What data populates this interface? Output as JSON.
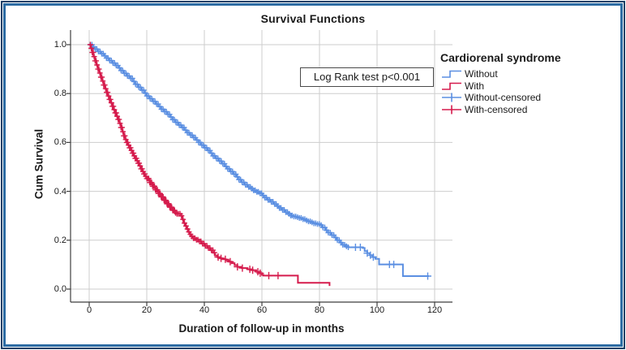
{
  "chart": {
    "title": "Survival Functions",
    "x_label": "Duration of follow-up in months",
    "y_label": "Cum Survival",
    "annotation": "Log Rank test p<0.001",
    "legend": {
      "title": "Cardiorenal syndrome",
      "items": [
        {
          "label": "Without",
          "symbol": "step-line",
          "color": "#5b8fe2"
        },
        {
          "label": "With",
          "symbol": "step-line",
          "color": "#d51c4d"
        },
        {
          "label": "Without-censored",
          "symbol": "plus-line",
          "color": "#5b8fe2"
        },
        {
          "label": "With-censored",
          "symbol": "plus-line",
          "color": "#d51c4d"
        }
      ]
    },
    "frame_colors": {
      "outer_border": "#1c3f66",
      "inner_border": "#2e6da4"
    }
  },
  "chart_data": {
    "type": "line",
    "subtype": "kaplan-meier-step",
    "title": "Survival Functions",
    "xlabel": "Duration of follow-up in months",
    "ylabel": "Cum Survival",
    "xlim": [
      -6.5,
      126
    ],
    "ylim": [
      -0.053,
      1.06
    ],
    "x_ticks": [
      0,
      20,
      40,
      60,
      80,
      100,
      120
    ],
    "y_ticks": [
      "0.0",
      "0.2",
      "0.4",
      "0.6",
      "0.8",
      "1.0"
    ],
    "grid": true,
    "grid_color": "#cdcdcd",
    "axis_color": "#3f3f3f",
    "legend_position": "right",
    "annotation": "Log Rank test p<0.001",
    "series": [
      {
        "name": "Without",
        "color": "#5b8fe2",
        "points": [
          [
            0,
            1
          ],
          [
            1,
            0.991
          ],
          [
            2,
            0.982
          ],
          [
            3,
            0.972
          ],
          [
            4,
            0.963
          ],
          [
            5,
            0.954
          ],
          [
            6,
            0.945
          ],
          [
            7,
            0.935
          ],
          [
            8,
            0.925
          ],
          [
            9,
            0.915
          ],
          [
            10,
            0.905
          ],
          [
            11,
            0.894
          ],
          [
            12,
            0.883
          ],
          [
            13,
            0.872
          ],
          [
            14,
            0.862
          ],
          [
            15,
            0.85
          ],
          [
            16,
            0.838
          ],
          [
            17,
            0.826
          ],
          [
            18,
            0.814
          ],
          [
            19,
            0.802
          ],
          [
            20,
            0.79
          ],
          [
            21,
            0.779
          ],
          [
            22,
            0.768
          ],
          [
            23,
            0.757
          ],
          [
            24,
            0.747
          ],
          [
            25,
            0.736
          ],
          [
            26,
            0.726
          ],
          [
            27,
            0.715
          ],
          [
            28,
            0.704
          ],
          [
            29,
            0.693
          ],
          [
            30,
            0.682
          ],
          [
            31,
            0.671
          ],
          [
            32,
            0.661
          ],
          [
            33,
            0.65
          ],
          [
            34,
            0.64
          ],
          [
            35,
            0.63
          ],
          [
            36,
            0.62
          ],
          [
            37,
            0.61
          ],
          [
            38,
            0.6
          ],
          [
            39,
            0.589
          ],
          [
            40,
            0.578
          ],
          [
            41,
            0.567
          ],
          [
            42,
            0.556
          ],
          [
            43,
            0.545
          ],
          [
            44,
            0.535
          ],
          [
            45,
            0.524
          ],
          [
            46,
            0.513
          ],
          [
            47,
            0.502
          ],
          [
            48,
            0.492
          ],
          [
            49,
            0.481
          ],
          [
            50,
            0.47
          ],
          [
            51,
            0.459
          ],
          [
            52,
            0.448
          ],
          [
            53,
            0.437
          ],
          [
            54,
            0.427
          ],
          [
            55,
            0.418
          ],
          [
            56,
            0.411
          ],
          [
            57,
            0.404
          ],
          [
            58,
            0.398
          ],
          [
            59,
            0.392
          ],
          [
            60,
            0.383
          ],
          [
            61,
            0.374
          ],
          [
            62,
            0.365
          ],
          [
            63,
            0.357
          ],
          [
            64,
            0.348
          ],
          [
            65,
            0.34
          ],
          [
            66,
            0.332
          ],
          [
            67,
            0.324
          ],
          [
            68,
            0.315
          ],
          [
            69,
            0.308
          ],
          [
            70,
            0.301
          ],
          [
            71,
            0.297
          ],
          [
            72,
            0.294
          ],
          [
            73,
            0.291
          ],
          [
            74,
            0.286
          ],
          [
            75,
            0.281
          ],
          [
            76,
            0.277
          ],
          [
            77,
            0.273
          ],
          [
            78,
            0.269
          ],
          [
            79,
            0.266
          ],
          [
            80,
            0.262
          ],
          [
            81,
            0.252
          ],
          [
            82,
            0.241
          ],
          [
            83,
            0.231
          ],
          [
            84,
            0.221
          ],
          [
            85,
            0.211
          ],
          [
            86,
            0.2
          ],
          [
            87,
            0.19
          ],
          [
            88,
            0.181
          ],
          [
            89,
            0.175
          ],
          [
            90,
            0.171
          ],
          [
            95,
            0.168
          ],
          [
            95.7,
            0.155
          ],
          [
            96.6,
            0.147
          ],
          [
            97.5,
            0.139
          ],
          [
            98.4,
            0.131
          ],
          [
            99.4,
            0.124
          ],
          [
            100.7,
            0.101
          ],
          [
            108.8,
            0.101
          ],
          [
            109,
            0.053
          ],
          [
            118,
            0.053
          ]
        ],
        "censor_dense": [
          [
            0.4,
            70,
            125
          ],
          [
            70.5,
            90,
            32
          ]
        ],
        "censor_marks": [
          92.5,
          94.2,
          96.6,
          97.7,
          98.7,
          104.3,
          105.8,
          117.6
        ]
      },
      {
        "name": "With",
        "color": "#d51c4d",
        "points": [
          [
            0,
            1
          ],
          [
            0.5,
            0.985
          ],
          [
            1,
            0.968
          ],
          [
            1.5,
            0.951
          ],
          [
            2,
            0.934
          ],
          [
            2.5,
            0.917
          ],
          [
            3,
            0.9
          ],
          [
            3.5,
            0.884
          ],
          [
            4,
            0.867
          ],
          [
            4.5,
            0.851
          ],
          [
            5,
            0.835
          ],
          [
            5.5,
            0.82
          ],
          [
            6,
            0.805
          ],
          [
            6.5,
            0.79
          ],
          [
            7,
            0.776
          ],
          [
            7.5,
            0.762
          ],
          [
            8,
            0.748
          ],
          [
            8.5,
            0.734
          ],
          [
            9,
            0.721
          ],
          [
            9.5,
            0.707
          ],
          [
            10,
            0.694
          ],
          [
            10.5,
            0.678
          ],
          [
            11,
            0.661
          ],
          [
            11.5,
            0.644
          ],
          [
            12,
            0.627
          ],
          [
            12.5,
            0.612
          ],
          [
            13,
            0.6
          ],
          [
            13.5,
            0.589
          ],
          [
            14,
            0.578
          ],
          [
            14.5,
            0.567
          ],
          [
            15,
            0.556
          ],
          [
            15.5,
            0.545
          ],
          [
            16,
            0.535
          ],
          [
            16.5,
            0.525
          ],
          [
            17,
            0.515
          ],
          [
            17.5,
            0.504
          ],
          [
            18,
            0.492
          ],
          [
            18.5,
            0.481
          ],
          [
            19,
            0.471
          ],
          [
            19.5,
            0.461
          ],
          [
            20,
            0.452
          ],
          [
            21,
            0.436
          ],
          [
            22,
            0.421
          ],
          [
            23,
            0.406
          ],
          [
            24,
            0.391
          ],
          [
            25,
            0.377
          ],
          [
            26,
            0.363
          ],
          [
            27,
            0.349
          ],
          [
            28,
            0.335
          ],
          [
            29,
            0.322
          ],
          [
            30,
            0.312
          ],
          [
            30.5,
            0.308
          ],
          [
            32,
            0.3
          ],
          [
            32.4,
            0.285
          ],
          [
            32.9,
            0.27
          ],
          [
            33.4,
            0.258
          ],
          [
            33.9,
            0.246
          ],
          [
            34.4,
            0.234
          ],
          [
            34.9,
            0.224
          ],
          [
            35.4,
            0.216
          ],
          [
            36,
            0.208
          ],
          [
            37,
            0.202
          ],
          [
            38,
            0.195
          ],
          [
            39,
            0.186
          ],
          [
            40,
            0.177
          ],
          [
            41,
            0.168
          ],
          [
            42,
            0.159
          ],
          [
            43,
            0.149
          ],
          [
            43.7,
            0.138
          ],
          [
            44.5,
            0.131
          ],
          [
            45.5,
            0.126
          ],
          [
            46.5,
            0.122
          ],
          [
            47.5,
            0.118
          ],
          [
            48.5,
            0.112
          ],
          [
            49.5,
            0.106
          ],
          [
            50.5,
            0.098
          ],
          [
            51.5,
            0.091
          ],
          [
            53,
            0.086
          ],
          [
            55,
            0.081
          ],
          [
            56.5,
            0.077
          ],
          [
            58,
            0.071
          ],
          [
            59,
            0.065
          ],
          [
            60,
            0.058
          ],
          [
            60.5,
            0.055
          ],
          [
            72.5,
            0.026
          ],
          [
            83.3,
            0.026
          ],
          [
            83.5,
            0.013
          ]
        ],
        "censor_dense": [
          [
            0.4,
            30,
            90
          ],
          [
            30.5,
            43.5,
            26
          ]
        ],
        "censor_marks": [
          44.8,
          45.8,
          47.3,
          49,
          51.5,
          53.2,
          55.8,
          56.8,
          58.6,
          59.4,
          62.4,
          65.6
        ]
      }
    ]
  }
}
